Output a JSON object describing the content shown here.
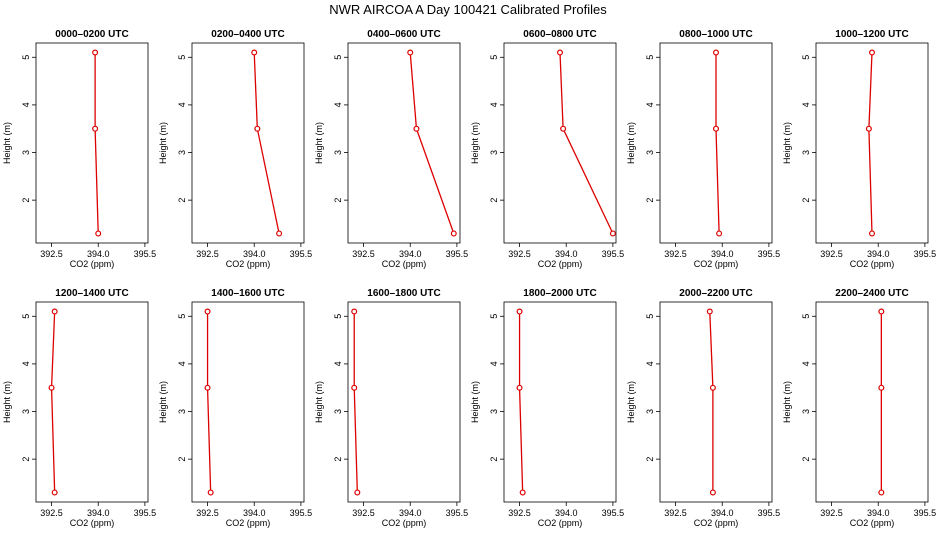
{
  "figure": {
    "title": "NWR AIRCOA A  Day 100421  Calibrated Profiles"
  },
  "colors": {
    "series": "#dd0000",
    "axis": "#000000",
    "background": "#ffffff"
  },
  "chart_data": [
    {
      "type": "line",
      "title": "0000–0200 UTC",
      "xlabel": "CO2 (ppm)",
      "ylabel": "Height (m)",
      "xlim": [
        392.0,
        395.6
      ],
      "ylim": [
        1.1,
        5.3
      ],
      "x": [
        394.0,
        393.9,
        393.9
      ],
      "y": [
        1.3,
        3.5,
        5.1
      ]
    },
    {
      "type": "line",
      "title": "0200–0400 UTC",
      "xlabel": "CO2 (ppm)",
      "ylabel": "Height (m)",
      "xlim": [
        392.0,
        395.6
      ],
      "ylim": [
        1.1,
        5.3
      ],
      "x": [
        394.8,
        394.1,
        394.0
      ],
      "y": [
        1.3,
        3.5,
        5.1
      ]
    },
    {
      "type": "line",
      "title": "0400–0600 UTC",
      "xlabel": "CO2 (ppm)",
      "ylabel": "Height (m)",
      "xlim": [
        392.0,
        395.6
      ],
      "ylim": [
        1.1,
        5.3
      ],
      "x": [
        395.4,
        394.2,
        394.0
      ],
      "y": [
        1.3,
        3.5,
        5.1
      ]
    },
    {
      "type": "line",
      "title": "0600–0800 UTC",
      "xlabel": "CO2 (ppm)",
      "ylabel": "Height (m)",
      "xlim": [
        392.0,
        395.6
      ],
      "ylim": [
        1.1,
        5.3
      ],
      "x": [
        395.5,
        393.9,
        393.8
      ],
      "y": [
        1.3,
        3.5,
        5.1
      ]
    },
    {
      "type": "line",
      "title": "0800–1000 UTC",
      "xlabel": "CO2 (ppm)",
      "ylabel": "Height (m)",
      "xlim": [
        392.0,
        395.6
      ],
      "ylim": [
        1.1,
        5.3
      ],
      "x": [
        393.9,
        393.8,
        393.8
      ],
      "y": [
        1.3,
        3.5,
        5.1
      ]
    },
    {
      "type": "line",
      "title": "1000–1200 UTC",
      "xlabel": "CO2 (ppm)",
      "ylabel": "Height (m)",
      "xlim": [
        392.0,
        395.6
      ],
      "ylim": [
        1.1,
        5.3
      ],
      "x": [
        393.8,
        393.7,
        393.8
      ],
      "y": [
        1.3,
        3.5,
        5.1
      ]
    },
    {
      "type": "line",
      "title": "1200–1400 UTC",
      "xlabel": "CO2 (ppm)",
      "ylabel": "Height (m)",
      "xlim": [
        392.0,
        395.6
      ],
      "ylim": [
        1.1,
        5.3
      ],
      "x": [
        392.6,
        392.5,
        392.6
      ],
      "y": [
        1.3,
        3.5,
        5.1
      ]
    },
    {
      "type": "line",
      "title": "1400–1600 UTC",
      "xlabel": "CO2 (ppm)",
      "ylabel": "Height (m)",
      "xlim": [
        392.0,
        395.6
      ],
      "ylim": [
        1.1,
        5.3
      ],
      "x": [
        392.6,
        392.5,
        392.5
      ],
      "y": [
        1.3,
        3.5,
        5.1
      ]
    },
    {
      "type": "line",
      "title": "1600–1800 UTC",
      "xlabel": "CO2 (ppm)",
      "ylabel": "Height (m)",
      "xlim": [
        392.0,
        395.6
      ],
      "ylim": [
        1.1,
        5.3
      ],
      "x": [
        392.3,
        392.2,
        392.2
      ],
      "y": [
        1.3,
        3.5,
        5.1
      ]
    },
    {
      "type": "line",
      "title": "1800–2000 UTC",
      "xlabel": "CO2 (ppm)",
      "ylabel": "Height (m)",
      "xlim": [
        392.0,
        395.6
      ],
      "ylim": [
        1.1,
        5.3
      ],
      "x": [
        392.6,
        392.5,
        392.5
      ],
      "y": [
        1.3,
        3.5,
        5.1
      ]
    },
    {
      "type": "line",
      "title": "2000–2200 UTC",
      "xlabel": "CO2 (ppm)",
      "ylabel": "Height (m)",
      "xlim": [
        392.0,
        395.6
      ],
      "ylim": [
        1.1,
        5.3
      ],
      "x": [
        393.7,
        393.7,
        393.6
      ],
      "y": [
        1.3,
        3.5,
        5.1
      ]
    },
    {
      "type": "line",
      "title": "2200–2400 UTC",
      "xlabel": "CO2 (ppm)",
      "ylabel": "Height (m)",
      "xlim": [
        392.0,
        395.6
      ],
      "ylim": [
        1.1,
        5.3
      ],
      "x": [
        394.1,
        394.1,
        394.1
      ],
      "y": [
        1.3,
        3.5,
        5.1
      ]
    }
  ],
  "axes": {
    "x_ticks": [
      392.5,
      394.0,
      395.5
    ],
    "x_tick_labels": [
      "392.5",
      "394.0",
      "395.5"
    ],
    "y_ticks": [
      2,
      3,
      4,
      5
    ],
    "y_tick_labels": [
      "2",
      "3",
      "4",
      "5"
    ]
  }
}
